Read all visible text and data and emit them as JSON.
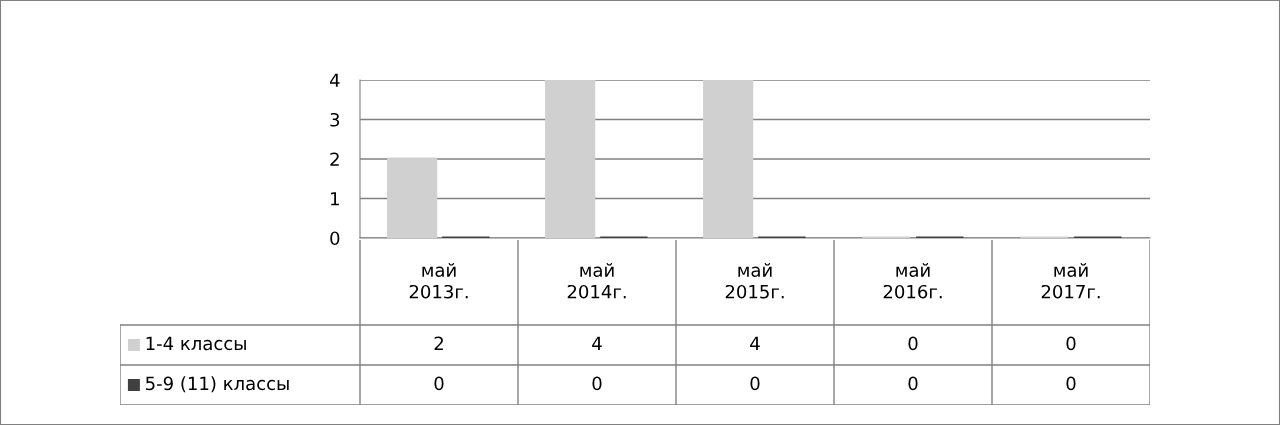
{
  "chart_data": {
    "type": "bar",
    "categories": [
      "май 2013г.",
      "май 2014г.",
      "май 2015г.",
      "май 2016г.",
      "май 2017г."
    ],
    "series": [
      {
        "name": "1-4 классы",
        "color": "#d0d0d0",
        "values": [
          2,
          4,
          4,
          0,
          0
        ]
      },
      {
        "name": "5-9 (11) классы",
        "color": "#404040",
        "values": [
          0,
          0,
          0,
          0,
          0
        ]
      }
    ],
    "ylim": [
      0,
      4
    ],
    "yticks": [
      0,
      1,
      2,
      3,
      4
    ],
    "grid": "y",
    "legend": "bottom",
    "data_labels": true
  }
}
